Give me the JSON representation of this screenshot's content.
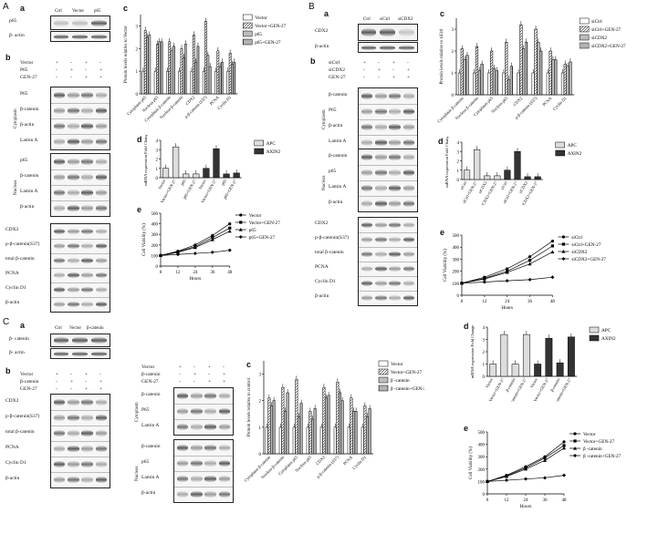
{
  "panels": {
    "A": "A",
    "B": "B",
    "C": "C"
  },
  "sub": {
    "a": "a",
    "b": "b",
    "c": "c",
    "d": "d",
    "e": "e"
  },
  "A": {
    "a_headers": [
      "Ctrl",
      "Vector",
      "p65"
    ],
    "a_rows": [
      "p65",
      "β- actin"
    ],
    "b_treat": [
      "Vector",
      "P65",
      "GEN-27"
    ],
    "b_signs": [
      [
        "+",
        "-",
        "+",
        "-"
      ],
      [
        "-",
        "+",
        "-",
        "+"
      ],
      [
        "-",
        "-",
        "+",
        "+"
      ]
    ],
    "cyto_rows": [
      "P65",
      "β-catenin",
      "β-actin",
      "Lamin A"
    ],
    "nuc_rows": [
      "p65",
      "β-catenin",
      "Lamin A",
      "β-actin"
    ],
    "whole_rows": [
      "CDX2",
      "p-β-catenin(S37)",
      "total β-catenin",
      "PCNA",
      "Cyclin D1",
      "β-actin"
    ],
    "cyto_label": "Cytoplasm",
    "nuc_label": "Nucleus",
    "c_ylabel": "Protein levels relative to Vector",
    "c_legend": [
      "Vector",
      "Vector+GEN-27",
      "p65",
      "p65+GEN-27"
    ],
    "c_cats": [
      "Cytoplasm p65",
      "Nucleus p65",
      "Cytoplasm β-catenin",
      "Nucleus β-catenin",
      "CDX2",
      "p-β-catenin (S37)",
      "PCNA",
      "Cyclin D1"
    ],
    "d_ylabel": "mRNA expression Fold Change",
    "d_legend": [
      "APC",
      "AXIN2"
    ],
    "d_cats": [
      "Vector",
      "Vector+GEN-27",
      "p65",
      "p65+GEN-27",
      "Vector",
      "Vector+GEN-27",
      "p65",
      "p65+GEN-27"
    ],
    "e_ylabel": "Cell Viability (%)",
    "e_xlabel": "Hours",
    "e_legend": [
      "Vector",
      "Vector+GEN-27",
      "p65",
      "p65+GEN-27"
    ]
  },
  "B": {
    "a_headers": [
      "Ctrl",
      "siCtrl",
      "siCDX2"
    ],
    "a_rows": [
      "CDX2",
      "β-actin"
    ],
    "b_treat": [
      "siCtrl",
      "siCDX2",
      "GEN-27"
    ],
    "b_signs": [
      [
        "+",
        "-",
        "+",
        "-"
      ],
      [
        "-",
        "+",
        "-",
        "+"
      ],
      [
        "-",
        "-",
        "+",
        "+"
      ]
    ],
    "cyto_rows": [
      "β-catenin",
      "P65",
      "β-actin",
      "Lamin A"
    ],
    "nuc_rows": [
      "β-catenin",
      "p65",
      "Lamin A",
      "β-actin"
    ],
    "whole_rows": [
      "CDX2",
      "p-β-catenin(S37)",
      "total β-catenin",
      "PCNA",
      "Cyclin D1",
      "β-actin"
    ],
    "cyto_label": "Cytoplasm",
    "nuc_label": "Nucleus",
    "c_ylabel": "Protein levels relative to siCtrl",
    "c_legend": [
      "siCtrl",
      "siCtrl+GEN-27",
      "siCDX2",
      "siCDX2+GEN-27"
    ],
    "c_cats": [
      "Cytoplasm β-catenin",
      "Nucleus β-catenin",
      "Cytoplasm p65",
      "Nucleus p65",
      "CDX2",
      "p-β-catenin (S37)",
      "PCNA",
      "Cyclin D1"
    ],
    "d_ylabel": "mRNA expression Fold Change",
    "d_legend": [
      "APC",
      "AXIN2"
    ],
    "d_cats": [
      "siCtrl",
      "siCtrl+GEN-27",
      "siCDX2",
      "siCDX2+GEN-27",
      "siCtrl",
      "siCtrl+GEN-27",
      "siCDX2",
      "siCDX2+GEN-27"
    ],
    "e_ylabel": "Cell Viability (%)",
    "e_xlabel": "Hours",
    "e_legend": [
      "siCtrl",
      "siCtrl+GEN-27",
      "siCDX2",
      "siCDX2+GEN-27"
    ]
  },
  "C": {
    "a_headers": [
      "Ctrl",
      "Vector",
      "β-catenin"
    ],
    "a_rows": [
      "β- catenin",
      "β- actin"
    ],
    "b_treat": [
      "Vector",
      "β-catenin",
      "GEN-27"
    ],
    "b_signs": [
      [
        "+",
        "-",
        "+",
        "-"
      ],
      [
        "-",
        "+",
        "-",
        "+"
      ],
      [
        "-",
        "-",
        "+",
        "+"
      ]
    ],
    "whole_rows": [
      "CDX2",
      "p-β-catenin(S37)",
      "total β-catenin",
      "PCNA",
      "Cyclin D1",
      "β-actin"
    ],
    "cyto_rows": [
      "β-catenin",
      "P65",
      "Lamin A"
    ],
    "nuc_rows": [
      "β-catenin",
      "p65",
      "Lamin A",
      "β-actin"
    ],
    "cyto_label": "Cytoplasm",
    "nuc_label": "Nucleus",
    "c_ylabel": "Protein levels relative to control",
    "c_legend": [
      "Vector",
      "Vector+GEN-27",
      "β -catenin",
      "β -catenin+GEN-27"
    ],
    "c_cats": [
      "Cytoplasm β-catenin",
      "Nucleus β-catenin",
      "Cytoplasm p65",
      "Nucleus p65",
      "CDX2",
      "p-β-catenin (S37)",
      "PCNA",
      "Cyclin D1"
    ],
    "d_ylabel": "mRNA expression Fold Change",
    "d_legend": [
      "APC",
      "AXIN2"
    ],
    "d_cats": [
      "Vector",
      "Vector+GEN-27",
      "β-catenin",
      "β-catenin+GEN-27",
      "Vector",
      "Vector+GEN-27",
      "β-catenin",
      "β-catenin+GEN-27"
    ],
    "e_ylabel": "Cell Viability (%)",
    "e_xlabel": "Hours",
    "e_legend": [
      "Vector",
      "Vector+GEN-27",
      "β -catenin",
      "β -catenin+GEN-27"
    ]
  },
  "chart_data": [
    {
      "id": "A-c",
      "type": "bar",
      "series": [
        {
          "name": "Vector",
          "values": [
            1,
            1,
            1,
            1,
            1,
            1,
            1,
            1
          ]
        },
        {
          "name": "Vector+GEN-27",
          "values": [
            2.8,
            2.2,
            2.3,
            2.0,
            2.6,
            3.2,
            1.9,
            1.8
          ]
        },
        {
          "name": "p65",
          "values": [
            2.5,
            2.3,
            1.9,
            1.6,
            1.4,
            1.7,
            1.2,
            1.3
          ]
        },
        {
          "name": "p65+GEN-27",
          "values": [
            2.6,
            2.3,
            2.1,
            2.2,
            2.1,
            1.2,
            1.4,
            1.4
          ]
        }
      ],
      "ylim": [
        0,
        3.5
      ],
      "yticks": [
        0,
        1,
        2,
        3
      ]
    },
    {
      "id": "A-d",
      "type": "bar",
      "values": [
        1,
        3.3,
        0.4,
        0.4,
        1,
        3.1,
        0.4,
        0.5
      ],
      "ylim": [
        0,
        4
      ],
      "yticks": [
        0,
        1,
        2,
        3,
        4
      ],
      "colors": [
        "#dddddd",
        "#dddddd",
        "#dddddd",
        "#dddddd",
        "#333333",
        "#333333",
        "#333333",
        "#333333"
      ]
    },
    {
      "id": "A-e",
      "type": "line",
      "x": [
        0,
        12,
        24,
        36,
        48
      ],
      "series": [
        {
          "name": "Vector",
          "values": [
            100,
            140,
            200,
            290,
            400
          ]
        },
        {
          "name": "Vector+GEN-27",
          "values": [
            100,
            135,
            185,
            270,
            360
          ]
        },
        {
          "name": "p65",
          "values": [
            100,
            130,
            175,
            250,
            330
          ]
        },
        {
          "name": "p65+GEN-27",
          "values": [
            100,
            110,
            120,
            130,
            150
          ]
        }
      ],
      "ylim": [
        0,
        500
      ],
      "yticks": [
        0,
        100,
        200,
        300,
        400,
        500
      ],
      "xticks": [
        0,
        12,
        24,
        36,
        48
      ]
    },
    {
      "id": "B-c",
      "type": "bar",
      "series": [
        {
          "name": "siCtrl",
          "values": [
            1,
            1,
            1,
            1,
            1,
            1,
            1,
            1
          ]
        },
        {
          "name": "siCtrl+GEN-27",
          "values": [
            2.1,
            2.2,
            2.0,
            2.4,
            3.2,
            3.0,
            2.0,
            1.4
          ]
        },
        {
          "name": "siCDX2",
          "values": [
            1.6,
            1.1,
            1.2,
            0.7,
            2.1,
            2.4,
            1.6,
            1.3
          ]
        },
        {
          "name": "siCDX2+GEN-27",
          "values": [
            1.8,
            1.4,
            1.1,
            1.3,
            2.4,
            2.0,
            1.6,
            1.5
          ]
        }
      ],
      "ylim": [
        0,
        3.5
      ],
      "yticks": [
        0,
        1,
        2,
        3
      ]
    },
    {
      "id": "B-d",
      "type": "bar",
      "values": [
        1,
        3.2,
        0.4,
        0.4,
        1,
        3.0,
        0.3,
        0.3
      ],
      "ylim": [
        0,
        4
      ],
      "yticks": [
        0,
        1,
        2,
        3,
        4
      ],
      "colors": [
        "#dddddd",
        "#dddddd",
        "#dddddd",
        "#dddddd",
        "#333333",
        "#333333",
        "#333333",
        "#333333"
      ]
    },
    {
      "id": "B-e",
      "type": "line",
      "x": [
        0,
        12,
        24,
        36,
        48
      ],
      "series": [
        {
          "name": "siCtrl",
          "values": [
            100,
            150,
            220,
            320,
            450
          ]
        },
        {
          "name": "siCtrl+GEN-27",
          "values": [
            100,
            140,
            200,
            290,
            410
          ]
        },
        {
          "name": "siCDX2",
          "values": [
            100,
            135,
            190,
            260,
            360
          ]
        },
        {
          "name": "siCDX2+GEN-27",
          "values": [
            100,
            110,
            120,
            130,
            150
          ]
        }
      ],
      "ylim": [
        0,
        500
      ],
      "yticks": [
        0,
        100,
        200,
        300,
        400,
        500
      ],
      "xticks": [
        0,
        12,
        24,
        36,
        48
      ]
    },
    {
      "id": "C-c",
      "type": "bar",
      "series": [
        {
          "name": "Vector",
          "values": [
            1,
            1,
            1,
            1,
            1,
            1,
            1,
            1
          ]
        },
        {
          "name": "Vector+GEN-27",
          "values": [
            2.1,
            2.5,
            2.8,
            1.6,
            2.5,
            2.7,
            2.1,
            1.8
          ]
        },
        {
          "name": "β -catenin",
          "values": [
            1.8,
            1.6,
            1.4,
            1.3,
            2.1,
            2.3,
            1.6,
            1.4
          ]
        },
        {
          "name": "β -catenin+GEN-27",
          "values": [
            2.0,
            2.3,
            1.9,
            1.7,
            2.2,
            2.0,
            1.6,
            1.7
          ]
        }
      ],
      "ylim": [
        0,
        3.5
      ],
      "yticks": [
        0,
        1,
        2,
        3
      ]
    },
    {
      "id": "C-d",
      "type": "bar",
      "values": [
        1,
        3.4,
        1.0,
        3.4,
        1,
        3.1,
        1.1,
        3.2
      ],
      "ylim": [
        0,
        4
      ],
      "yticks": [
        0,
        1,
        2,
        3,
        4
      ],
      "colors": [
        "#dddddd",
        "#dddddd",
        "#dddddd",
        "#dddddd",
        "#333333",
        "#333333",
        "#333333",
        "#333333"
      ]
    },
    {
      "id": "C-e",
      "type": "line",
      "x": [
        0,
        12,
        24,
        36,
        48
      ],
      "series": [
        {
          "name": "Vector",
          "values": [
            100,
            150,
            220,
            300,
            420
          ]
        },
        {
          "name": "Vector+GEN-27",
          "values": [
            100,
            145,
            210,
            290,
            390
          ]
        },
        {
          "name": "β -catenin",
          "values": [
            100,
            140,
            200,
            270,
            370
          ]
        },
        {
          "name": "β -catenin+GEN-27",
          "values": [
            100,
            110,
            120,
            130,
            150
          ]
        }
      ],
      "ylim": [
        0,
        500
      ],
      "yticks": [
        0,
        100,
        200,
        300,
        400,
        500
      ],
      "xticks": [
        0,
        12,
        24,
        36,
        48
      ]
    }
  ]
}
